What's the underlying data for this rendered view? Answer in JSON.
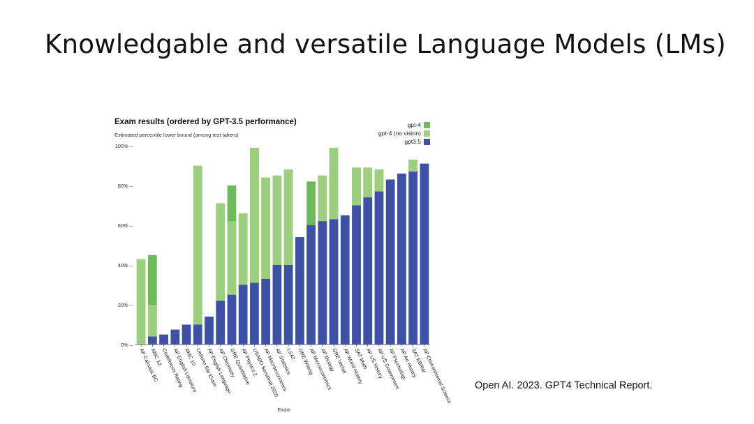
{
  "slide": {
    "title": "Knowledgable and versatile Language Models (LMs)",
    "citation": "Open AI. 2023. GPT4 Technical Report."
  },
  "chart_data": {
    "type": "bar",
    "title": "Exam results (ordered by GPT-3.5 performance)",
    "subtitle": "Estimated percentile lower bound (among test takers)",
    "xlabel": "Exam",
    "ylabel": "",
    "ylim": [
      0,
      100
    ],
    "yticks": [
      "0% –",
      "20% –",
      "40% –",
      "60% –",
      "80% –",
      "100% –"
    ],
    "legend_position": "top-right",
    "categories": [
      "AP Calculus BC",
      "AMC 12",
      "Codeforces Rating",
      "AP English Literature",
      "AMC 10",
      "Uniform Bar Exam",
      "AP English Language",
      "AP Chemistry",
      "GRE Quantitative",
      "AP Physics 2",
      "USABO Semifinal 2020",
      "AP Macroeconomics",
      "AP Statistics",
      "LSAT",
      "GRE Writing",
      "AP Microeconomics",
      "AP Biology",
      "GRE Verbal",
      "AP World History",
      "SAT Math",
      "AP US History",
      "AP US Government",
      "AP Psychology",
      "AP Art History",
      "SAT EBRW",
      "AP Environmental Science"
    ],
    "series": [
      {
        "name": "gpt3.5",
        "color": "#3f51a6",
        "values": [
          0,
          4,
          5,
          7.5,
          10,
          10,
          14,
          22,
          25,
          30,
          31,
          33,
          40,
          40,
          54,
          60,
          62,
          63,
          65,
          70,
          74,
          77,
          83,
          86,
          87,
          91
        ]
      },
      {
        "name": "gpt-4 (no vision)",
        "color": "#9ccf7e",
        "values": [
          43,
          20,
          5,
          7.5,
          10,
          90,
          14,
          71,
          62,
          66,
          99,
          84,
          85,
          88,
          54,
          60,
          85,
          99,
          65,
          89,
          89,
          88,
          83,
          86,
          93,
          91
        ]
      },
      {
        "name": "gpt-4",
        "color": "#6cba5c",
        "values": [
          43,
          45,
          5,
          7.5,
          10,
          90,
          14,
          71,
          80,
          66,
          99,
          84,
          85,
          88,
          54,
          82,
          85,
          99,
          65,
          89,
          89,
          88,
          83,
          86,
          93,
          91
        ]
      }
    ]
  }
}
